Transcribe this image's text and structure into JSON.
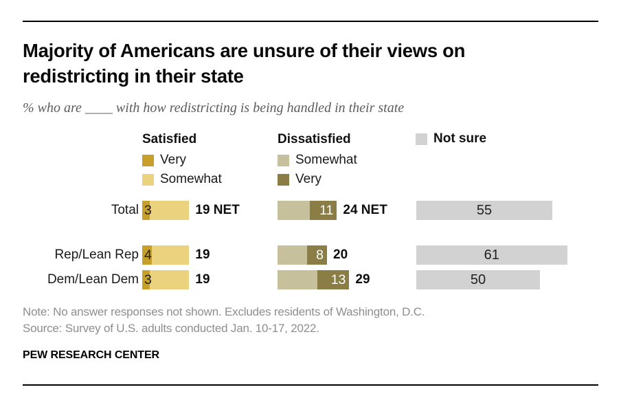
{
  "header": {
    "title_line1": "Majority of Americans are unsure of their views on",
    "title_line2": "redistricting in their state",
    "subtitle": "% who are ____ with how redistricting is being handled in their state"
  },
  "legend": {
    "satisfied_header": "Satisfied",
    "dissatisfied_header": "Dissatisfied",
    "not_sure_label": "Not sure",
    "satisfied_items": [
      {
        "label": "Very",
        "color_key": "sat_very"
      },
      {
        "label": "Somewhat",
        "color_key": "sat_somewhat"
      }
    ],
    "dissatisfied_items": [
      {
        "label": "Somewhat",
        "color_key": "dis_somewhat"
      },
      {
        "label": "Very",
        "color_key": "dis_very"
      }
    ]
  },
  "colors": {
    "sat_very": "#C6A02A",
    "sat_somewhat": "#EAD27E",
    "dis_somewhat": "#C7C09C",
    "dis_very": "#8A7E46",
    "not_sure": "#D2D2D2"
  },
  "rows": [
    {
      "label": "Total",
      "sat_very": 3,
      "sat_somewhat": 16,
      "sat_very_label": "3",
      "sat_net_label": "19 NET",
      "dis_somewhat": 13,
      "dis_very": 11,
      "dis_very_label": "11",
      "dis_net_label": "24 NET",
      "not_sure": 55,
      "not_sure_label": "55"
    },
    {
      "label": "Rep/Lean Rep",
      "sat_very": 4,
      "sat_somewhat": 15,
      "sat_very_label": "4",
      "sat_net_label": "19",
      "dis_somewhat": 12,
      "dis_very": 8,
      "dis_very_label": "8",
      "dis_net_label": "20",
      "not_sure": 61,
      "not_sure_label": "61"
    },
    {
      "label": "Dem/Lean Dem",
      "sat_very": 3,
      "sat_somewhat": 16,
      "sat_very_label": "3",
      "sat_net_label": "19",
      "dis_somewhat": 16,
      "dis_very": 13,
      "dis_very_label": "13",
      "dis_net_label": "29",
      "not_sure": 50,
      "not_sure_label": "50"
    }
  ],
  "chart_data": {
    "type": "bar",
    "orientation": "horizontal",
    "title": "Majority of Americans are unsure of their views on redistricting in their state",
    "subtitle": "% who are ____ with how redistricting is being handled in their state",
    "categories": [
      "Total",
      "Rep/Lean Rep",
      "Dem/Lean Dem"
    ],
    "series": [
      {
        "name": "Very satisfied",
        "values": [
          3,
          4,
          3
        ],
        "color": "#C6A02A"
      },
      {
        "name": "Somewhat satisfied",
        "values": [
          16,
          15,
          16
        ],
        "color": "#EAD27E"
      },
      {
        "name": "Somewhat dissatisfied",
        "values": [
          13,
          12,
          16
        ],
        "color": "#C7C09C"
      },
      {
        "name": "Very dissatisfied",
        "values": [
          11,
          8,
          13
        ],
        "color": "#8A7E46"
      },
      {
        "name": "Not sure",
        "values": [
          55,
          61,
          50
        ],
        "color": "#D2D2D2"
      }
    ],
    "net_labels": {
      "satisfied": [
        "19 NET",
        "19",
        "19"
      ],
      "dissatisfied": [
        "24 NET",
        "20",
        "29"
      ]
    },
    "xlim": [
      0,
      100
    ],
    "unit": "percent",
    "grid": false,
    "legend_position": "top"
  },
  "footer": {
    "note": "Note: No answer responses not shown. Excludes residents of Washington, D.C.",
    "source": "Source: Survey of U.S. adults conducted Jan. 10-17, 2022.",
    "brand": "PEW RESEARCH CENTER"
  }
}
